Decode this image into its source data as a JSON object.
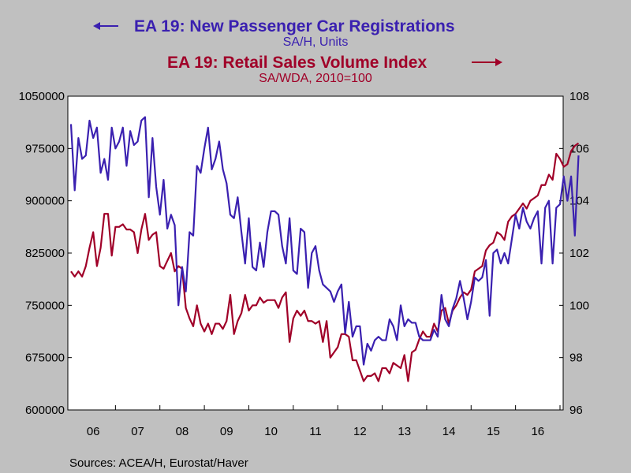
{
  "chart_data": {
    "type": "line",
    "title": "",
    "series": [
      {
        "name": "EA 19: New Passenger Car Registrations",
        "subtitle": "SA/H, Units",
        "axis": "left",
        "arrow": "left",
        "color": "#3a20b0",
        "x_start": "2006-01",
        "values": [
          1010000,
          915000,
          990000,
          960000,
          965000,
          1015000,
          990000,
          1005000,
          940000,
          960000,
          930000,
          1005000,
          975000,
          985000,
          1005000,
          950000,
          1000000,
          980000,
          985000,
          1015000,
          1020000,
          905000,
          990000,
          920000,
          880000,
          930000,
          860000,
          880000,
          865000,
          750000,
          805000,
          770000,
          855000,
          850000,
          950000,
          940000,
          975000,
          1005000,
          945000,
          960000,
          985000,
          945000,
          925000,
          880000,
          875000,
          905000,
          855000,
          810000,
          875000,
          805000,
          800000,
          840000,
          805000,
          855000,
          885000,
          885000,
          880000,
          835000,
          810000,
          875000,
          800000,
          795000,
          860000,
          855000,
          775000,
          825000,
          835000,
          800000,
          780000,
          775000,
          770000,
          755000,
          770000,
          780000,
          710000,
          755000,
          705000,
          720000,
          720000,
          665000,
          695000,
          685000,
          700000,
          705000,
          700000,
          700000,
          730000,
          720000,
          700000,
          750000,
          720000,
          730000,
          725000,
          725000,
          705000,
          700000,
          700000,
          700000,
          715000,
          705000,
          765000,
          730000,
          720000,
          745000,
          760000,
          785000,
          760000,
          730000,
          755000,
          790000,
          785000,
          790000,
          815000,
          735000,
          825000,
          830000,
          810000,
          825000,
          810000,
          845000,
          880000,
          860000,
          890000,
          870000,
          860000,
          875000,
          885000,
          810000,
          890000,
          900000,
          810000,
          890000,
          895000,
          935000,
          900000,
          935000,
          850000,
          965000
        ]
      },
      {
        "name": "EA 19: Retail Sales Volume Index",
        "subtitle": "SA/WDA, 2010=100",
        "axis": "right",
        "arrow": "right",
        "color": "#a00028",
        "x_start": "2006-01",
        "values": [
          101.3,
          101.1,
          101.3,
          101.1,
          101.5,
          102.2,
          102.8,
          101.5,
          102.2,
          103.5,
          103.5,
          101.9,
          103.0,
          103.0,
          103.1,
          102.9,
          102.9,
          102.8,
          102.0,
          102.9,
          103.5,
          102.5,
          102.7,
          102.8,
          101.5,
          101.4,
          101.7,
          102.0,
          101.3,
          101.5,
          101.4,
          99.9,
          99.5,
          99.2,
          100.0,
          99.3,
          99.0,
          99.3,
          98.9,
          99.3,
          99.3,
          99.1,
          99.4,
          100.4,
          98.9,
          99.4,
          99.7,
          100.4,
          99.8,
          100.0,
          100.0,
          100.3,
          100.1,
          100.2,
          100.2,
          100.2,
          99.9,
          100.3,
          100.5,
          98.6,
          99.5,
          99.8,
          99.6,
          99.8,
          99.4,
          99.4,
          99.3,
          99.4,
          98.6,
          99.4,
          98.0,
          98.2,
          98.4,
          98.9,
          98.9,
          98.8,
          97.9,
          97.9,
          97.5,
          97.1,
          97.3,
          97.3,
          97.4,
          97.1,
          97.6,
          97.6,
          97.4,
          97.8,
          97.7,
          97.6,
          98.1,
          97.1,
          98.2,
          98.3,
          98.7,
          99.0,
          98.8,
          98.8,
          99.3,
          99.0,
          99.8,
          99.9,
          99.3,
          99.8,
          100.0,
          100.3,
          100.5,
          100.4,
          100.6,
          101.3,
          101.4,
          101.5,
          102.1,
          102.3,
          102.4,
          102.8,
          102.7,
          102.5,
          103.2,
          103.4,
          103.5,
          103.7,
          103.9,
          103.7,
          104.0,
          104.1,
          104.2,
          104.6,
          104.6,
          105.0,
          104.8,
          105.8,
          105.6,
          105.3,
          105.4,
          105.9,
          106.1,
          106.2
        ]
      }
    ],
    "y_left": {
      "min": 600000,
      "max": 1050000,
      "ticks": [
        "600000",
        "675000",
        "750000",
        "825000",
        "900000",
        "975000",
        "1050000"
      ]
    },
    "y_right": {
      "min": 96,
      "max": 108,
      "ticks": [
        "96",
        "98",
        "100",
        "102",
        "104",
        "106",
        "108"
      ]
    },
    "x_labels": [
      "06",
      "07",
      "08",
      "09",
      "10",
      "11",
      "12",
      "13",
      "14",
      "15",
      "16"
    ],
    "grid": false,
    "legend": "top-center",
    "source": "Sources:  ACEA/H, Eurostat/Haver"
  }
}
